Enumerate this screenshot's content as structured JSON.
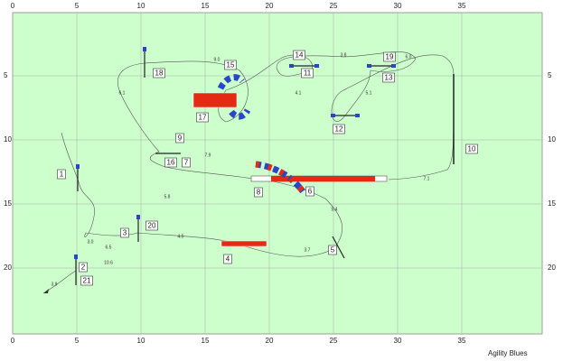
{
  "axes": {
    "x_ticks": [
      0,
      5,
      10,
      15,
      20,
      25,
      30,
      35
    ],
    "y_ticks": [
      5,
      10,
      15,
      20
    ]
  },
  "obstacles": [
    {
      "label": "1"
    },
    {
      "label": "2"
    },
    {
      "label": "3"
    },
    {
      "label": "4"
    },
    {
      "label": "5"
    },
    {
      "label": "6"
    },
    {
      "label": "7"
    },
    {
      "label": "8"
    },
    {
      "label": "9"
    },
    {
      "label": "10"
    },
    {
      "label": "11"
    },
    {
      "label": "12"
    },
    {
      "label": "13"
    },
    {
      "label": "14"
    },
    {
      "label": "15"
    },
    {
      "label": "16"
    },
    {
      "label": "17"
    },
    {
      "label": "18"
    },
    {
      "label": "19"
    },
    {
      "label": "20"
    },
    {
      "label": "21"
    }
  ],
  "distances": [
    "3.0",
    "6.5",
    "10.6",
    "3.9",
    "5.8",
    "7.9",
    "4.5",
    "3.7",
    "5.4",
    "6.1",
    "9.0",
    "4.1",
    "5.1",
    "3.8",
    "6.0",
    "7.1"
  ],
  "footer": "Agility Blues"
}
